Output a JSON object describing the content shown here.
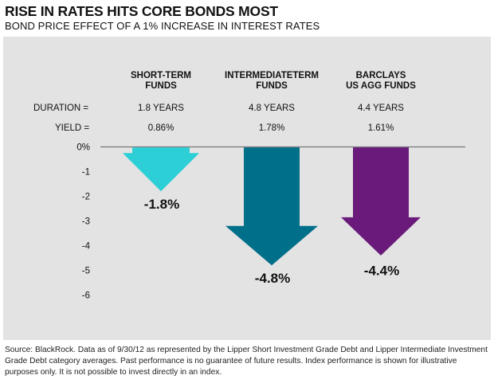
{
  "title": "RISE IN RATES HITS CORE BONDS MOST",
  "subtitle": "BOND PRICE EFFECT OF A 1% INCREASE IN INTEREST RATES",
  "rows": {
    "duration_label": "DURATION =",
    "yield_label": "YIELD ="
  },
  "funds": [
    {
      "header": [
        "SHORT-TERM",
        "FUNDS"
      ],
      "duration": "1.8 YEARS",
      "yield": "0.86%"
    },
    {
      "header": [
        "INTERMEDIATETERM",
        "FUNDS"
      ],
      "duration": "4.8 YEARS",
      "yield": "1.78%"
    },
    {
      "header": [
        "BARCLAYS",
        "US AGG FUNDS"
      ],
      "duration": "4.4 YEARS",
      "yield": "1.61%"
    }
  ],
  "chart_data": {
    "type": "bar",
    "categories": [
      "Short-Term Funds",
      "Intermediate-Term Funds",
      "Barclays US Agg Funds"
    ],
    "values": [
      -1.8,
      -4.8,
      -4.4
    ],
    "data_labels": [
      "-1.8%",
      "-4.8%",
      "-4.4%"
    ],
    "colors": [
      "#2ccfd6",
      "#006f8a",
      "#6a1a7a"
    ],
    "y_ticks": [
      "0%",
      "-1",
      "-2",
      "-3",
      "-4",
      "-5",
      "-6"
    ],
    "ylim": [
      -6,
      0
    ],
    "grid": false
  },
  "source": "Source: BlackRock. Data as of 9/30/12 as represented by the Lipper Short Investment Grade Debt and Lipper Intermediate Investment Grade Debt category averages. Past performance is no guarantee of future results. Index performance is shown for illustrative purposes only. It is not possible to invest directly in an index."
}
